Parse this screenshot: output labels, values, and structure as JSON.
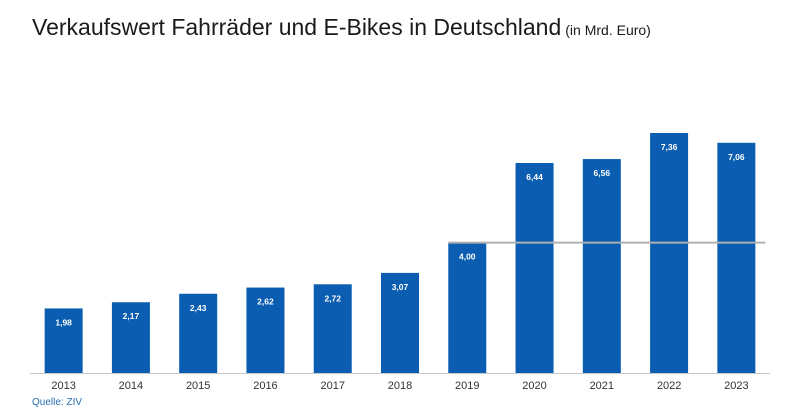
{
  "title": "Verkaufswert Fahrräder und E-Bikes in Deutschland",
  "subtitle": "(in Mrd. Euro)",
  "source": "Quelle: ZIV",
  "colors": {
    "bar": "#0a5db0",
    "reference_line": "#b0b0b0",
    "axis": "#c8c8c8",
    "tick_label": "#333333",
    "data_label": "#ffffff"
  },
  "chart_data": {
    "type": "bar",
    "categories": [
      "2013",
      "2014",
      "2015",
      "2016",
      "2017",
      "2018",
      "2019",
      "2020",
      "2021",
      "2022",
      "2023"
    ],
    "values": [
      1.98,
      2.17,
      2.43,
      2.62,
      2.72,
      3.07,
      4.0,
      6.44,
      6.56,
      7.36,
      7.06
    ],
    "value_labels": [
      "1,98",
      "2,17",
      "2,43",
      "2,62",
      "2,72",
      "3,07",
      "4,00",
      "6,44",
      "6,56",
      "7,36",
      "7,06"
    ],
    "reference_line": {
      "value": 4.0,
      "from_category": "2019",
      "to_category": "2023"
    },
    "ylim": [
      0,
      7.36
    ],
    "grid": false,
    "legend": "none"
  }
}
